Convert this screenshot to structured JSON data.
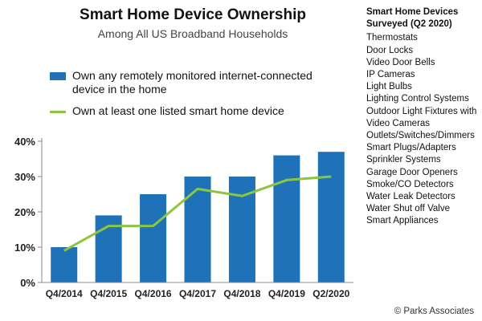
{
  "chart_data": {
    "type": "bar",
    "title": "Smart Home Device Ownership",
    "subtitle": "Among All US Broadband Households",
    "categories": [
      "Q4/2014",
      "Q4/2015",
      "Q4/2016",
      "Q4/2017",
      "Q4/2018",
      "Q4/2019",
      "Q2/2020"
    ],
    "series": [
      {
        "name": "Own any remotely monitored internet-connected device in the home",
        "kind": "bar",
        "color": "#1f72b8",
        "values": [
          10,
          19,
          25,
          30,
          30,
          36,
          37
        ]
      },
      {
        "name": "Own at least one listed smart home device",
        "kind": "line",
        "color": "#8cc63f",
        "values": [
          9,
          16,
          16,
          26.5,
          24.5,
          29,
          30
        ]
      }
    ],
    "yticks": [
      "0%",
      "10%",
      "20%",
      "30%",
      "40%"
    ],
    "ylim": [
      0,
      40
    ],
    "grid": false,
    "legend_position": "top-left"
  },
  "sidebar": {
    "title": "Smart Home Devices Surveyed (Q2 2020)",
    "items": [
      "Thermostats",
      "Door Locks",
      "Video Door Bells",
      "IP Cameras",
      "Light Bulbs",
      "Lighting Control Systems",
      "Outdoor Light Fixtures with Video Cameras",
      "Outlets/Switches/Dimmers",
      "Smart Plugs/Adapters",
      "Sprinkler Systems",
      "Garage Door Openers",
      "Smoke/CO Detectors",
      "Water Leak Detectors",
      "Water Shut off Valve",
      "Smart Appliances"
    ]
  },
  "copyright": "© Parks Associates"
}
